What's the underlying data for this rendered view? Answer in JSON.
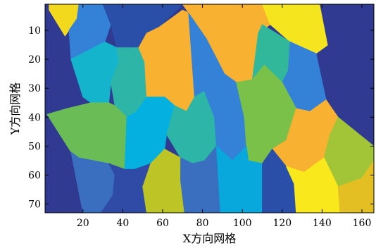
{
  "chart_data": {
    "type": "heatmap",
    "title": "",
    "xlabel": "X方向网格",
    "ylabel": "Y方向网格",
    "xlim": [
      1,
      166
    ],
    "ylim": [
      1,
      73
    ],
    "y_reversed": true,
    "grid": false,
    "x_ticks": [
      20,
      40,
      60,
      80,
      100,
      120,
      140,
      160
    ],
    "y_ticks": [
      10,
      20,
      30,
      40,
      50,
      60,
      70
    ],
    "background_color": "#2f3a90",
    "regions": [
      {
        "color": "#f2d91e",
        "polygon": [
          [
            3,
            1
          ],
          [
            18,
            1
          ],
          [
            17,
            6
          ],
          [
            13,
            10
          ],
          [
            11,
            12
          ],
          [
            3,
            3
          ]
        ]
      },
      {
        "color": "#3481d8",
        "polygon": [
          [
            18,
            1
          ],
          [
            30,
            1
          ],
          [
            34,
            8
          ],
          [
            31,
            14
          ],
          [
            14,
            20
          ],
          [
            13,
            10
          ],
          [
            17,
            6
          ]
        ]
      },
      {
        "color": "#2a4fa8",
        "polygon": [
          [
            30,
            1
          ],
          [
            70,
            1
          ],
          [
            58,
            9
          ],
          [
            52,
            11
          ],
          [
            48,
            16
          ],
          [
            37,
            16
          ],
          [
            34,
            8
          ]
        ]
      },
      {
        "color": "#f8b130",
        "polygon": [
          [
            70,
            1
          ],
          [
            110,
            1
          ],
          [
            114,
            8
          ],
          [
            108,
            11
          ],
          [
            105,
            27
          ],
          [
            97,
            28
          ],
          [
            91,
            25
          ],
          [
            82,
            13
          ],
          [
            73,
            4
          ]
        ]
      },
      {
        "color": "#f5e51f",
        "polygon": [
          [
            110,
            1
          ],
          [
            139,
            1
          ],
          [
            143,
            15
          ],
          [
            137,
            18
          ],
          [
            124,
            14
          ],
          [
            114,
            8
          ]
        ]
      },
      {
        "color": "#2f3a90",
        "polygon": [
          [
            139,
            1
          ],
          [
            166,
            1
          ],
          [
            166,
            50
          ],
          [
            148,
            40
          ],
          [
            142,
            34
          ],
          [
            143,
            15
          ]
        ]
      },
      {
        "color": "#15b4cd",
        "polygon": [
          [
            14,
            20
          ],
          [
            31,
            14
          ],
          [
            37,
            16
          ],
          [
            38,
            21
          ],
          [
            34,
            28
          ],
          [
            33,
            35
          ],
          [
            24,
            35
          ],
          [
            20,
            33
          ]
        ]
      },
      {
        "color": "#2db5a8",
        "polygon": [
          [
            37,
            16
          ],
          [
            48,
            16
          ],
          [
            51,
            21
          ],
          [
            52,
            33
          ],
          [
            47,
            38
          ],
          [
            42,
            40
          ],
          [
            36,
            36
          ],
          [
            34,
            28
          ],
          [
            38,
            21
          ]
        ]
      },
      {
        "color": "#f8b130",
        "polygon": [
          [
            52,
            11
          ],
          [
            58,
            9
          ],
          [
            70,
            3
          ],
          [
            73,
            4
          ],
          [
            82,
            13
          ],
          [
            76,
            33
          ],
          [
            72,
            38
          ],
          [
            66,
            36
          ],
          [
            61,
            33
          ],
          [
            52,
            33
          ],
          [
            51,
            21
          ],
          [
            48,
            16
          ]
        ]
      },
      {
        "color": "#3481d8",
        "polygon": [
          [
            73,
            4
          ],
          [
            82,
            13
          ],
          [
            91,
            25
          ],
          [
            87,
            32
          ],
          [
            81,
            31
          ],
          [
            76,
            33
          ]
        ]
      },
      {
        "color": "#31b89a",
        "polygon": [
          [
            110,
            8
          ],
          [
            124,
            14
          ],
          [
            123,
            24
          ],
          [
            120,
            28
          ],
          [
            111,
            22
          ],
          [
            105,
            27
          ],
          [
            108,
            11
          ]
        ]
      },
      {
        "color": "#3481d8",
        "polygon": [
          [
            124,
            14
          ],
          [
            137,
            18
          ],
          [
            142,
            34
          ],
          [
            134,
            38
          ],
          [
            127,
            37
          ],
          [
            120,
            28
          ],
          [
            123,
            24
          ]
        ]
      },
      {
        "color": "#6abd56",
        "polygon": [
          [
            2,
            39
          ],
          [
            12,
            37
          ],
          [
            24,
            35
          ],
          [
            33,
            35
          ],
          [
            36,
            36
          ],
          [
            42,
            40
          ],
          [
            41,
            58
          ],
          [
            33,
            56
          ],
          [
            18,
            54
          ],
          [
            14,
            52
          ]
        ]
      },
      {
        "color": "#04b0e0",
        "polygon": [
          [
            42,
            40
          ],
          [
            47,
            38
          ],
          [
            52,
            33
          ],
          [
            61,
            33
          ],
          [
            66,
            36
          ],
          [
            62,
            46
          ],
          [
            61,
            51
          ],
          [
            54,
            56
          ],
          [
            46,
            58
          ],
          [
            41,
            58
          ]
        ]
      },
      {
        "color": "#2db5a8",
        "polygon": [
          [
            66,
            36
          ],
          [
            72,
            38
          ],
          [
            76,
            33
          ],
          [
            81,
            31
          ],
          [
            86,
            40
          ],
          [
            87,
            50
          ],
          [
            81,
            55
          ],
          [
            75,
            56
          ],
          [
            69,
            54
          ],
          [
            62,
            46
          ]
        ]
      },
      {
        "color": "#3481d8",
        "polygon": [
          [
            81,
            31
          ],
          [
            87,
            32
          ],
          [
            91,
            25
          ],
          [
            97,
            28
          ],
          [
            101,
            40
          ],
          [
            102,
            50
          ],
          [
            95,
            55
          ],
          [
            87,
            50
          ],
          [
            86,
            40
          ]
        ]
      },
      {
        "color": "#79c148",
        "polygon": [
          [
            97,
            28
          ],
          [
            105,
            27
          ],
          [
            111,
            22
          ],
          [
            120,
            28
          ],
          [
            127,
            37
          ],
          [
            122,
            48
          ],
          [
            115,
            51
          ],
          [
            110,
            56
          ],
          [
            103,
            55
          ],
          [
            102,
            50
          ],
          [
            101,
            40
          ]
        ]
      },
      {
        "color": "#f8b130",
        "polygon": [
          [
            127,
            37
          ],
          [
            134,
            38
          ],
          [
            142,
            34
          ],
          [
            148,
            40
          ],
          [
            144,
            46
          ],
          [
            141,
            54
          ],
          [
            131,
            59
          ],
          [
            122,
            57
          ],
          [
            115,
            51
          ],
          [
            122,
            48
          ]
        ]
      },
      {
        "color": "#a2c437",
        "polygon": [
          [
            148,
            40
          ],
          [
            166,
            50
          ],
          [
            166,
            55
          ],
          [
            160,
            61
          ],
          [
            148,
            64
          ],
          [
            141,
            54
          ],
          [
            144,
            46
          ]
        ]
      },
      {
        "color": "#3a6fc0",
        "polygon": [
          [
            14,
            52
          ],
          [
            18,
            54
          ],
          [
            33,
            56
          ],
          [
            36,
            60
          ],
          [
            35,
            67
          ],
          [
            29,
            73
          ],
          [
            20,
            73
          ]
        ]
      },
      {
        "color": "#2f4ba5",
        "polygon": [
          [
            33,
            56
          ],
          [
            41,
            58
          ],
          [
            46,
            58
          ],
          [
            54,
            56
          ],
          [
            50,
            64
          ],
          [
            52,
            73
          ],
          [
            29,
            73
          ],
          [
            35,
            67
          ],
          [
            36,
            60
          ]
        ]
      },
      {
        "color": "#bcc426",
        "polygon": [
          [
            54,
            56
          ],
          [
            61,
            51
          ],
          [
            69,
            54
          ],
          [
            69,
            62
          ],
          [
            71,
            73
          ],
          [
            52,
            73
          ],
          [
            50,
            64
          ]
        ]
      },
      {
        "color": "#3a6fc0",
        "polygon": [
          [
            69,
            54
          ],
          [
            75,
            56
          ],
          [
            81,
            55
          ],
          [
            87,
            50
          ],
          [
            88,
            61
          ],
          [
            89,
            73
          ],
          [
            71,
            73
          ],
          [
            69,
            62
          ]
        ]
      },
      {
        "color": "#08a8dc",
        "polygon": [
          [
            87,
            50
          ],
          [
            95,
            55
          ],
          [
            102,
            50
          ],
          [
            103,
            55
          ],
          [
            110,
            56
          ],
          [
            110,
            73
          ],
          [
            89,
            73
          ],
          [
            88,
            61
          ]
        ]
      },
      {
        "color": "#2a4fa8",
        "polygon": [
          [
            110,
            56
          ],
          [
            115,
            51
          ],
          [
            122,
            57
          ],
          [
            126,
            63
          ],
          [
            127,
            73
          ],
          [
            110,
            73
          ]
        ]
      },
      {
        "color": "#f8e81c",
        "polygon": [
          [
            122,
            57
          ],
          [
            131,
            59
          ],
          [
            141,
            54
          ],
          [
            148,
            64
          ],
          [
            149,
            73
          ],
          [
            127,
            73
          ],
          [
            126,
            63
          ]
        ]
      },
      {
        "color": "#e4bf24",
        "polygon": [
          [
            148,
            64
          ],
          [
            160,
            61
          ],
          [
            166,
            55
          ],
          [
            166,
            73
          ],
          [
            149,
            73
          ]
        ]
      }
    ]
  }
}
